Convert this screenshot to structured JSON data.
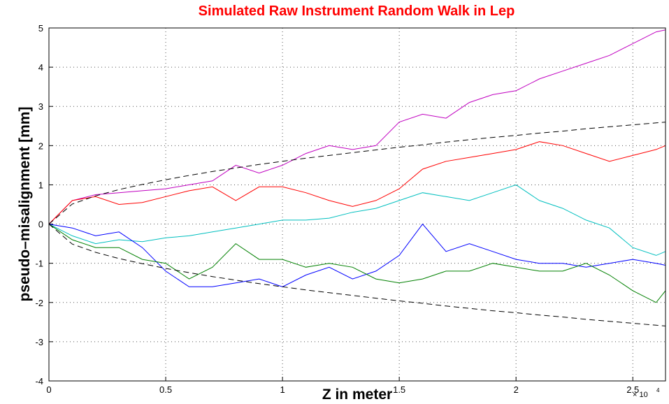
{
  "chart_data": {
    "type": "line",
    "title": "Simulated Raw Instrument Random Walk in Lep",
    "x_label": "Z in meter",
    "y_label": "pseudo–misalignment [mm]",
    "x_multiplier": "× 10",
    "x_multiplier_exponent": "4",
    "x": [
      0,
      1000,
      2000,
      3000,
      4000,
      5000,
      6000,
      7000,
      8000,
      9000,
      10000,
      11000,
      12000,
      13000,
      14000,
      15000,
      16000,
      17000,
      18000,
      19000,
      20000,
      21000,
      22000,
      23000,
      24000,
      25000,
      26000,
      26400
    ],
    "series": [
      {
        "color": "#c000c0",
        "dash": false,
        "values": [
          0,
          0.6,
          0.75,
          0.8,
          0.85,
          0.9,
          1.0,
          1.1,
          1.5,
          1.3,
          1.5,
          1.8,
          2.0,
          1.9,
          2.0,
          2.6,
          2.8,
          2.7,
          3.1,
          3.3,
          3.4,
          3.7,
          3.9,
          4.1,
          4.3,
          4.6,
          4.9,
          4.95
        ]
      },
      {
        "color": "#ff0000",
        "dash": false,
        "values": [
          0,
          0.6,
          0.7,
          0.5,
          0.55,
          0.7,
          0.85,
          0.95,
          0.6,
          0.95,
          0.95,
          0.8,
          0.6,
          0.45,
          0.6,
          0.9,
          1.4,
          1.6,
          1.7,
          1.8,
          1.9,
          2.1,
          2.0,
          1.8,
          1.6,
          1.75,
          1.9,
          2.0
        ]
      },
      {
        "color": "#00bfbf",
        "dash": false,
        "values": [
          0,
          -0.3,
          -0.5,
          -0.4,
          -0.45,
          -0.35,
          -0.3,
          -0.2,
          -0.1,
          0,
          0.1,
          0.1,
          0.15,
          0.3,
          0.4,
          0.6,
          0.8,
          0.7,
          0.6,
          0.8,
          1.0,
          0.6,
          0.4,
          0.1,
          -0.1,
          -0.6,
          -0.8,
          -0.7
        ]
      },
      {
        "color": "#0000ff",
        "dash": false,
        "values": [
          0,
          -0.1,
          -0.3,
          -0.2,
          -0.6,
          -1.2,
          -1.6,
          -1.6,
          -1.5,
          -1.4,
          -1.6,
          -1.3,
          -1.1,
          -1.4,
          -1.2,
          -0.8,
          0,
          -0.7,
          -0.5,
          -0.7,
          -0.9,
          -1.0,
          -1.0,
          -1.1,
          -1.0,
          -0.9,
          -1.0,
          -1.05
        ]
      },
      {
        "color": "#008000",
        "dash": false,
        "values": [
          0,
          -0.4,
          -0.6,
          -0.6,
          -0.9,
          -1.0,
          -1.4,
          -1.1,
          -0.5,
          -0.9,
          -0.9,
          -1.1,
          -1.0,
          -1.1,
          -1.4,
          -1.5,
          -1.4,
          -1.2,
          -1.2,
          -1.0,
          -1.1,
          -1.2,
          -1.2,
          -1.0,
          -1.3,
          -1.7,
          -2.0,
          -1.7
        ]
      },
      {
        "color": "#000000",
        "dash": true,
        "values": [
          0,
          0.51,
          0.72,
          0.88,
          1.01,
          1.13,
          1.24,
          1.34,
          1.43,
          1.52,
          1.6,
          1.68,
          1.75,
          1.82,
          1.89,
          1.96,
          2.02,
          2.09,
          2.15,
          2.21,
          2.26,
          2.32,
          2.37,
          2.43,
          2.48,
          2.53,
          2.58,
          2.6
        ]
      },
      {
        "color": "#000000",
        "dash": true,
        "values": [
          0,
          -0.51,
          -0.72,
          -0.88,
          -1.01,
          -1.13,
          -1.24,
          -1.34,
          -1.43,
          -1.52,
          -1.6,
          -1.68,
          -1.75,
          -1.82,
          -1.89,
          -1.96,
          -2.02,
          -2.09,
          -2.15,
          -2.21,
          -2.26,
          -2.32,
          -2.37,
          -2.43,
          -2.48,
          -2.53,
          -2.58,
          -2.6
        ]
      }
    ],
    "xlim": [
      0,
      26400
    ],
    "ylim": [
      -4,
      5
    ],
    "xticks": [
      {
        "value": 0,
        "label": "0"
      },
      {
        "value": 5000,
        "label": "0.5"
      },
      {
        "value": 10000,
        "label": "1"
      },
      {
        "value": 15000,
        "label": "1.5"
      },
      {
        "value": 20000,
        "label": "2"
      },
      {
        "value": 25000,
        "label": "2.5"
      }
    ],
    "yticks": [
      -4,
      -3,
      -2,
      -1,
      0,
      1,
      2,
      3,
      4,
      5
    ],
    "grid": true
  }
}
